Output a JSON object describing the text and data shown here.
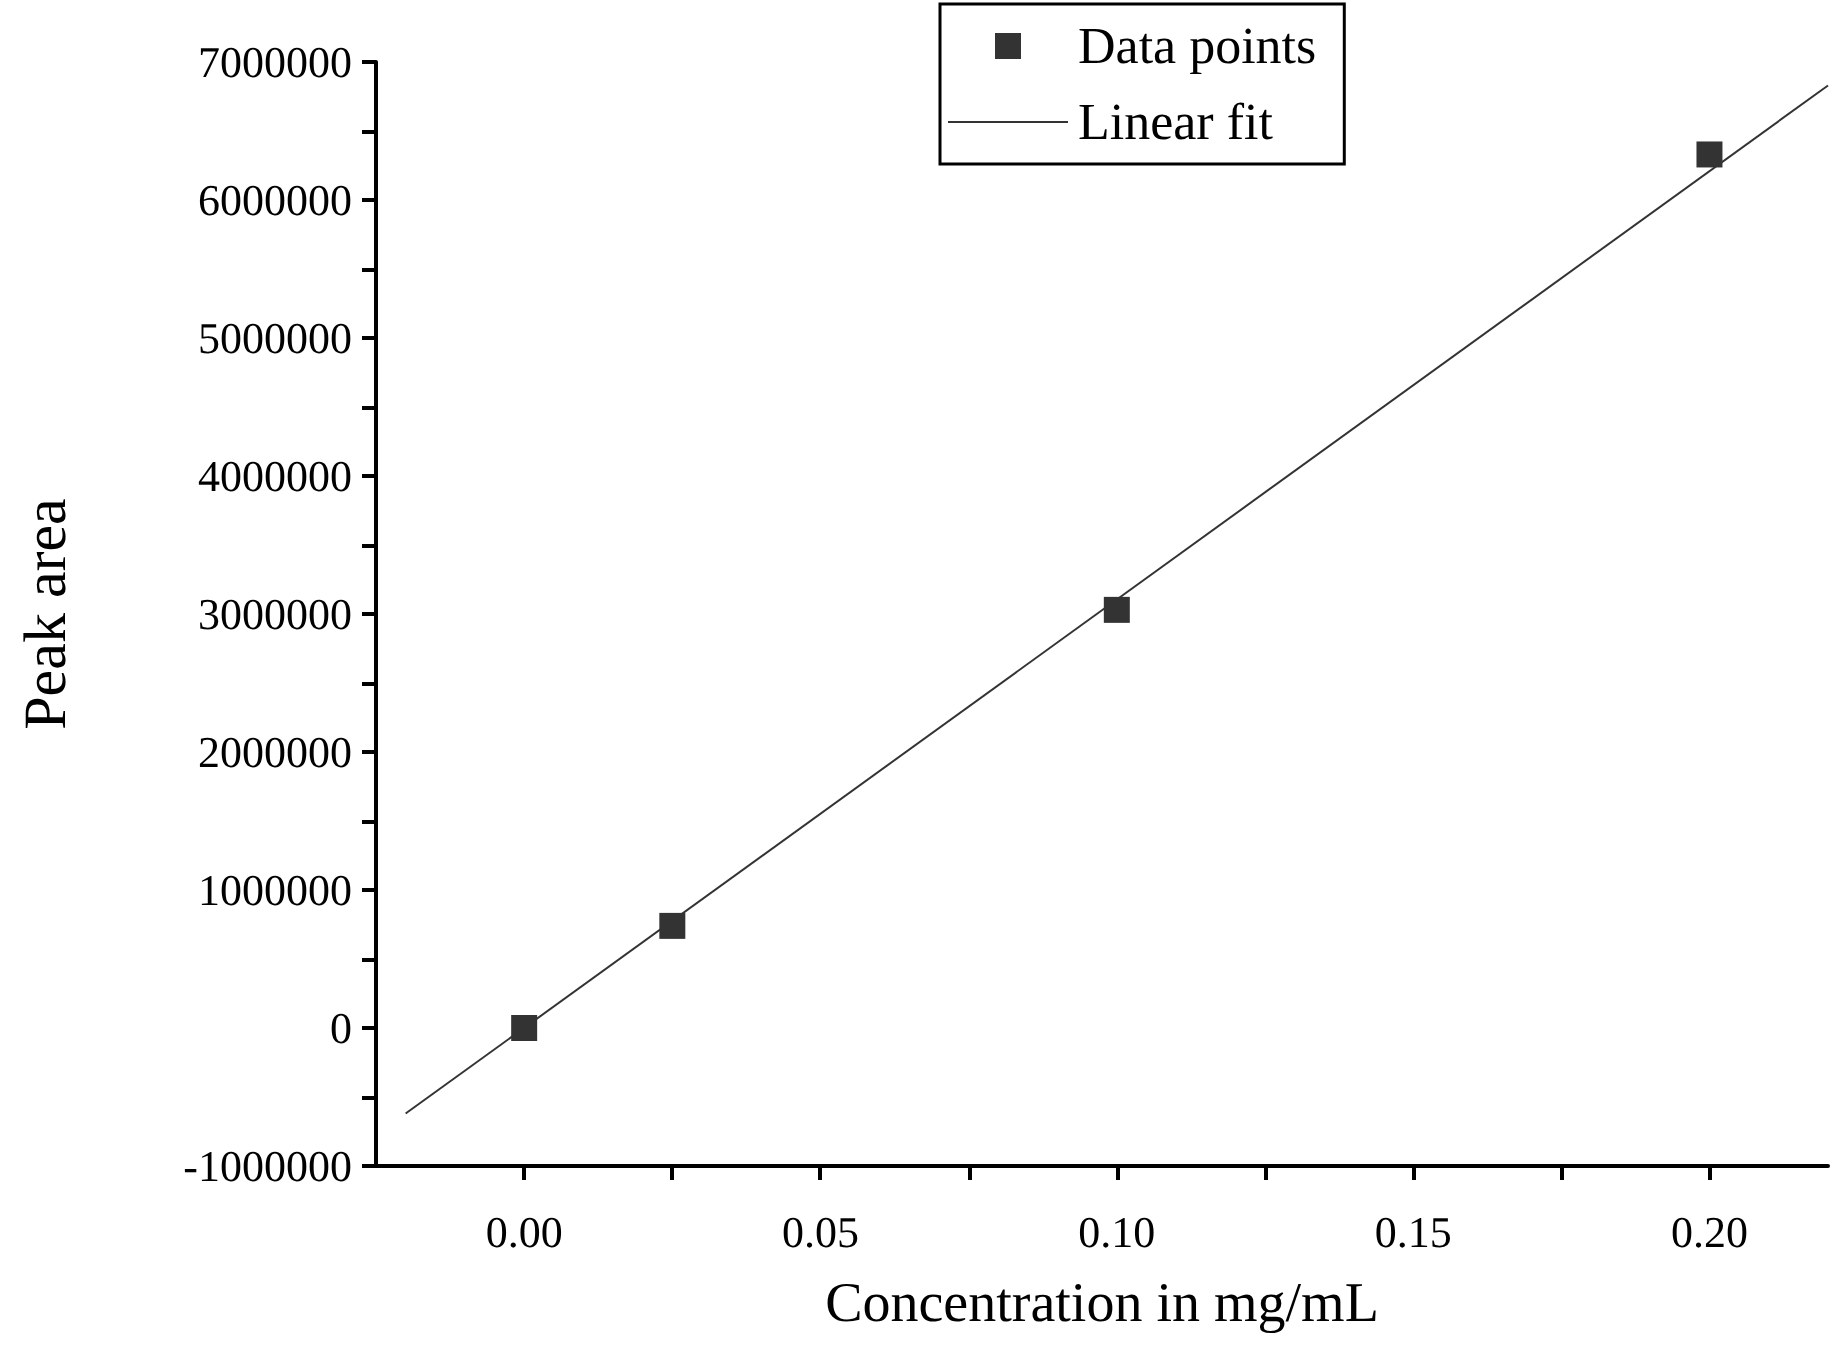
{
  "chart_data": {
    "type": "scatter",
    "xlabel": "Concentration in mg/mL",
    "ylabel": "Peak area",
    "xlim": [
      -0.025,
      0.22
    ],
    "xticks": [
      {
        "value": 0,
        "label": "0.00"
      },
      {
        "value": 0.025,
        "label": null
      },
      {
        "value": 0.05,
        "label": "0.05"
      },
      {
        "value": 0.075,
        "label": null
      },
      {
        "value": 0.1,
        "label": "0.10"
      },
      {
        "value": 0.125,
        "label": null
      },
      {
        "value": 0.15,
        "label": "0.15"
      },
      {
        "value": 0.175,
        "label": null
      },
      {
        "value": 0.2,
        "label": "0.20"
      }
    ],
    "ylim": [
      -1000000,
      7000000
    ],
    "yticks": [
      -1000000,
      {
        "value": -500000,
        "label": null
      },
      0,
      {
        "value": 500000,
        "label": null
      },
      1000000,
      {
        "value": 1500000,
        "label": null
      },
      2000000,
      {
        "value": 2500000,
        "label": null
      },
      3000000,
      {
        "value": 3500000,
        "label": null
      },
      4000000,
      {
        "value": 4500000,
        "label": null
      },
      5000000,
      {
        "value": 5500000,
        "label": null
      },
      6000000,
      {
        "value": 6500000,
        "label": null
      },
      7000000
    ],
    "grid": false,
    "legend": "top",
    "series": [
      {
        "name": "Data points",
        "type": "scatter",
        "marker": "square",
        "color": "#000000",
        "x": [
          0,
          0.025,
          0.1,
          0.2
        ],
        "values": [
          0,
          740000,
          3030000,
          6330000
        ]
      },
      {
        "name": "Linear fit",
        "type": "line",
        "marker": "none",
        "line_style": "solid",
        "color": "#333333",
        "x": [
          -0.02,
          0.22
        ],
        "values": [
          -620000,
          6830000
        ]
      }
    ]
  }
}
